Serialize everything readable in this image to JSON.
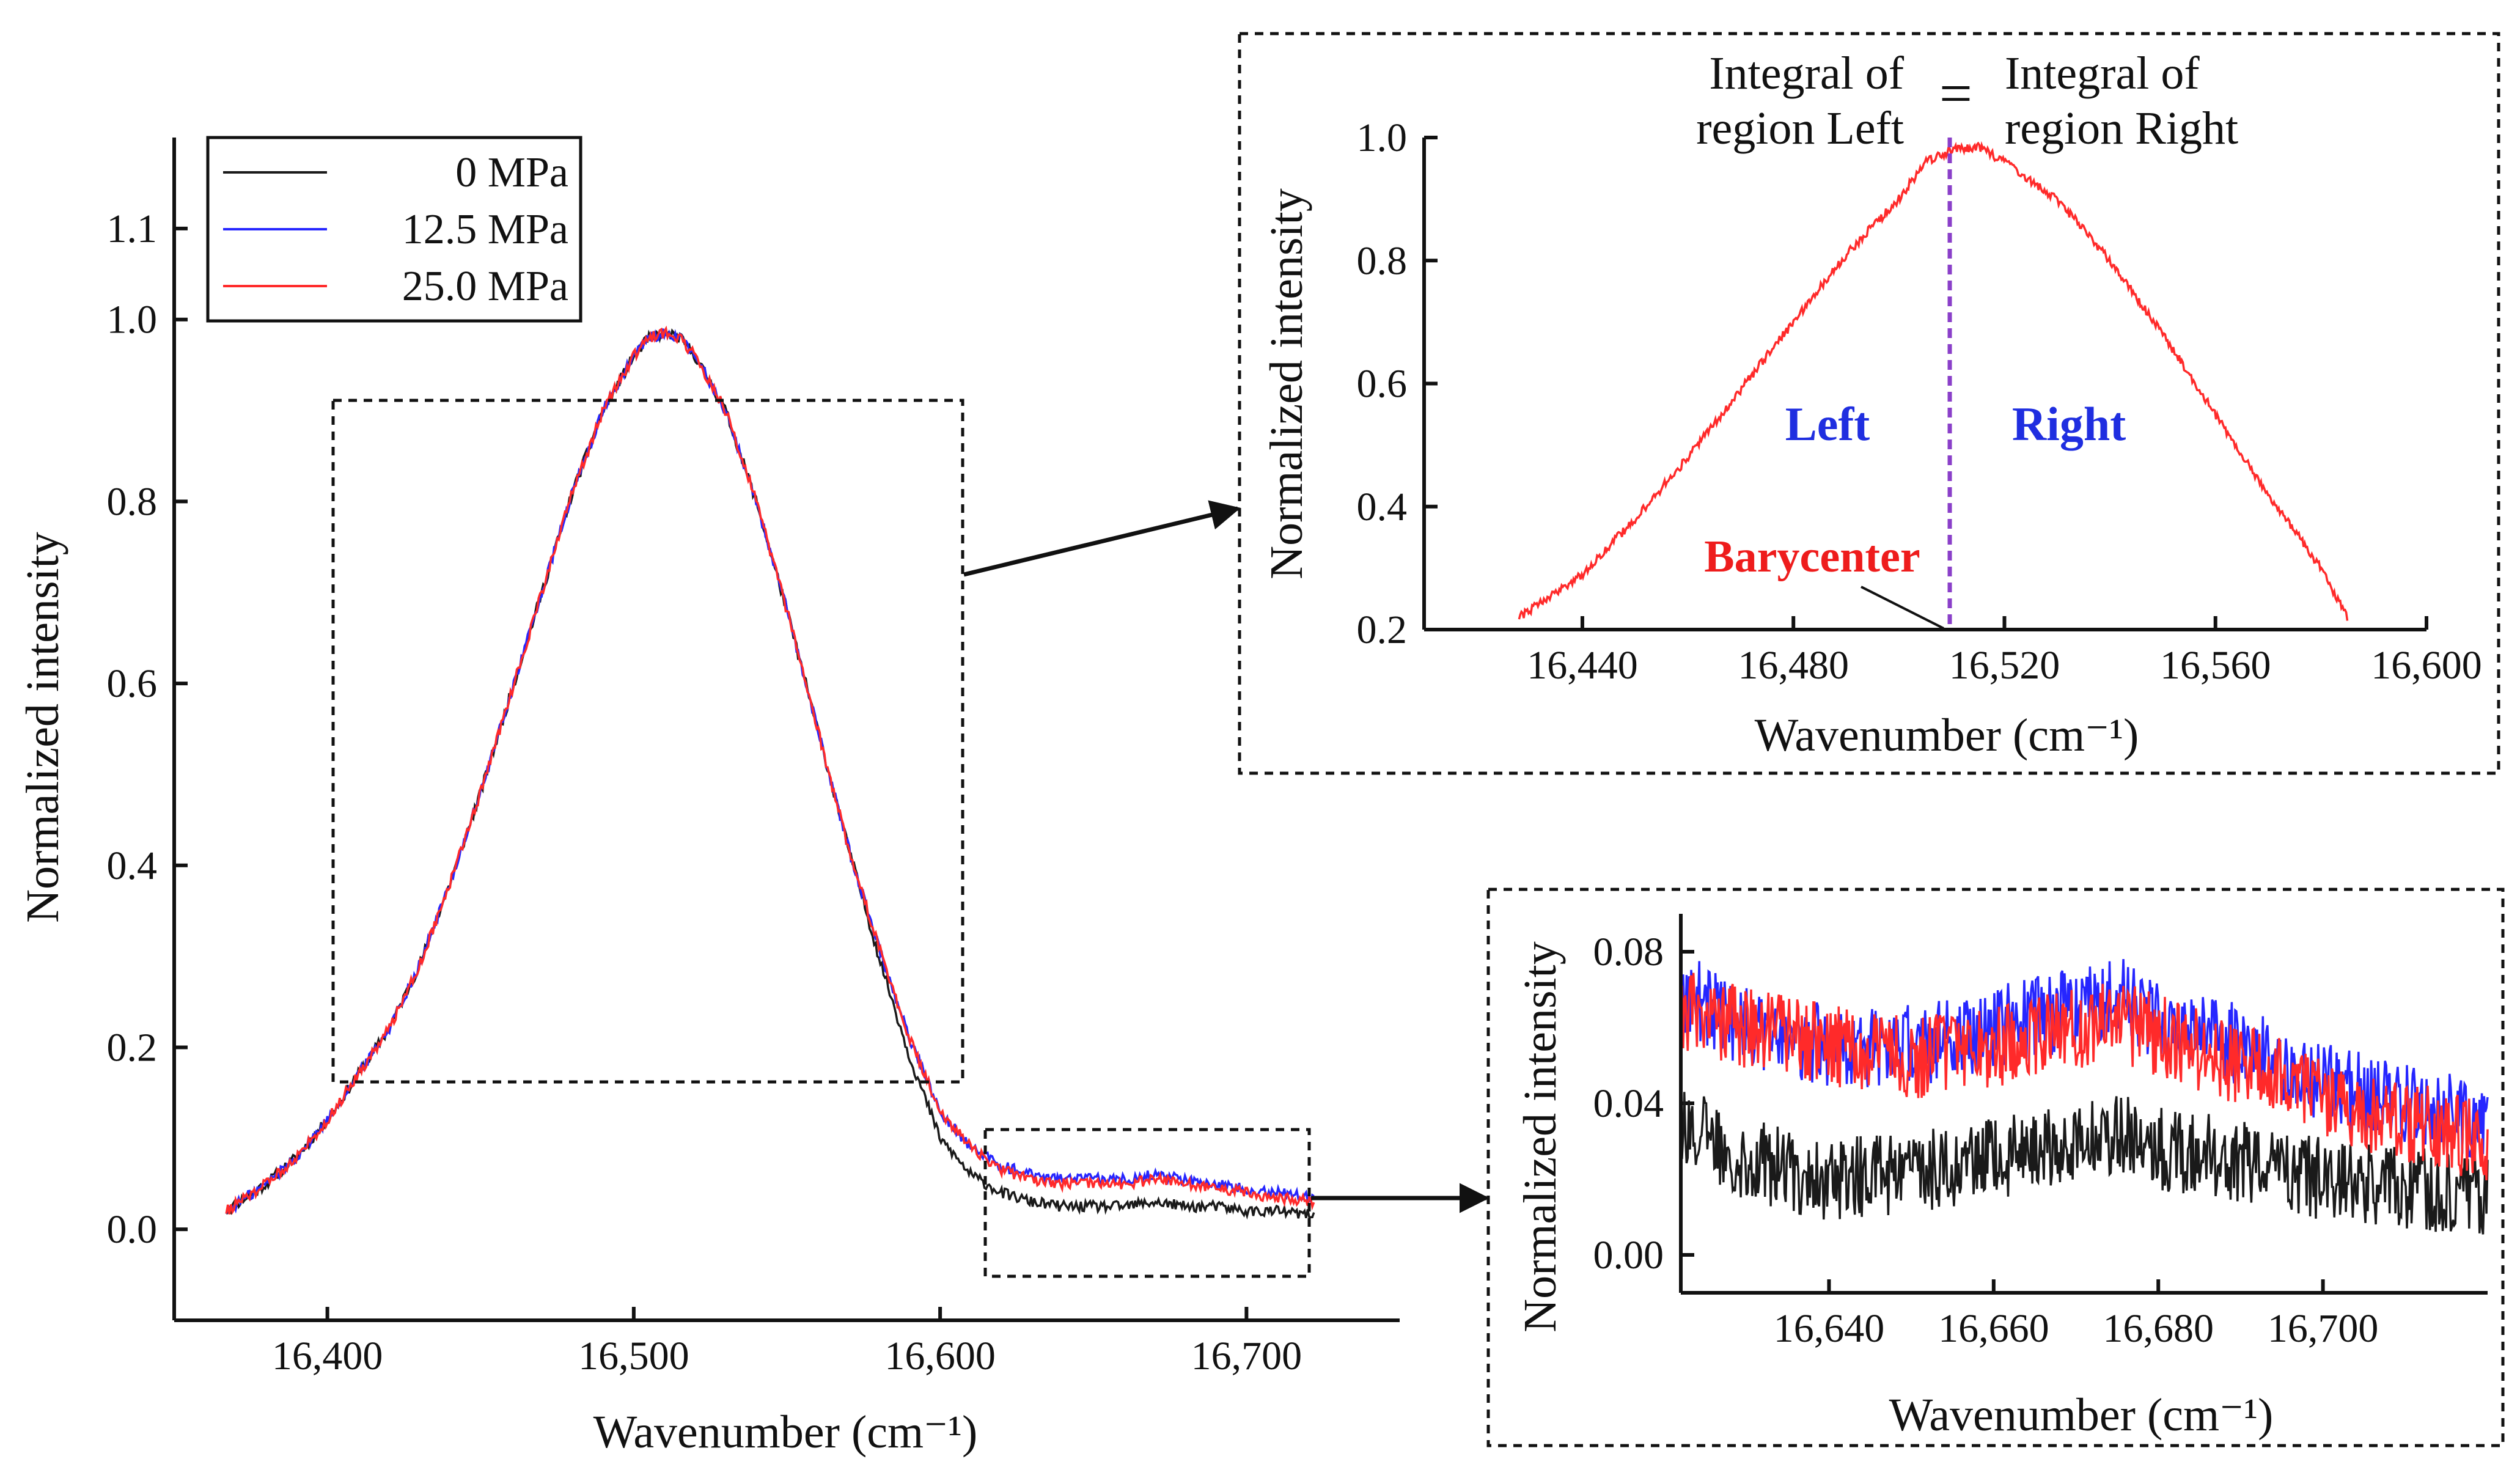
{
  "colors": {
    "0 MPa": "#1a1a1a",
    "12.5 MPa": "#2626ff",
    "25.0 MPa": "#ff2a2a",
    "barycenter_line": "#8a3fc9",
    "region_label": "#1f2ee0",
    "barycenter_label": "#ee1c1c"
  },
  "chart_data": [
    {
      "id": "main",
      "type": "line",
      "xlabel": "Wavenumber (cm⁻¹)",
      "ylabel": "Normalized intensity",
      "xlim": [
        16350,
        16750
      ],
      "ylim": [
        -0.1,
        1.2
      ],
      "xticks": [
        16400,
        16500,
        16600,
        16700
      ],
      "xtick_labels": [
        "16,400",
        "16,500",
        "16,600",
        "16,700"
      ],
      "yticks": [
        0.0,
        0.2,
        0.4,
        0.6,
        0.8,
        1.0,
        1.1
      ],
      "ytick_labels": [
        "0.0",
        "0.2",
        "0.4",
        "0.6",
        "0.8",
        "1.0",
        "1.1"
      ],
      "legend_position": "top-left",
      "x": [
        16367,
        16380,
        16390,
        16400,
        16410,
        16420,
        16430,
        16440,
        16450,
        16460,
        16470,
        16480,
        16490,
        16500,
        16505,
        16510,
        16515,
        16520,
        16530,
        16540,
        16550,
        16560,
        16570,
        16580,
        16590,
        16600,
        16610,
        16620,
        16630,
        16640,
        16650,
        16660,
        16670,
        16680,
        16690,
        16700,
        16710,
        16722
      ],
      "series": [
        {
          "name": "0 MPa",
          "values": [
            0.02,
            0.05,
            0.08,
            0.12,
            0.17,
            0.22,
            0.29,
            0.38,
            0.48,
            0.59,
            0.7,
            0.81,
            0.9,
            0.96,
            0.98,
            0.985,
            0.98,
            0.96,
            0.9,
            0.8,
            0.68,
            0.55,
            0.42,
            0.3,
            0.19,
            0.1,
            0.06,
            0.04,
            0.03,
            0.025,
            0.025,
            0.025,
            0.03,
            0.025,
            0.025,
            0.02,
            0.02,
            0.015
          ]
        },
        {
          "name": "12.5 MPa",
          "values": [
            0.02,
            0.05,
            0.08,
            0.12,
            0.17,
            0.22,
            0.29,
            0.38,
            0.48,
            0.59,
            0.7,
            0.81,
            0.9,
            0.96,
            0.98,
            0.985,
            0.98,
            0.96,
            0.9,
            0.8,
            0.68,
            0.55,
            0.42,
            0.31,
            0.21,
            0.13,
            0.09,
            0.07,
            0.06,
            0.055,
            0.055,
            0.055,
            0.06,
            0.055,
            0.05,
            0.045,
            0.04,
            0.035
          ]
        },
        {
          "name": "25.0 MPa",
          "values": [
            0.02,
            0.05,
            0.08,
            0.12,
            0.17,
            0.22,
            0.29,
            0.38,
            0.48,
            0.59,
            0.7,
            0.81,
            0.9,
            0.96,
            0.98,
            0.985,
            0.98,
            0.96,
            0.9,
            0.8,
            0.68,
            0.55,
            0.42,
            0.31,
            0.21,
            0.13,
            0.09,
            0.065,
            0.055,
            0.05,
            0.05,
            0.05,
            0.055,
            0.05,
            0.045,
            0.04,
            0.035,
            0.03
          ]
        }
      ]
    },
    {
      "id": "inset_peak",
      "type": "line",
      "xlabel": "Wavenumber (cm⁻¹)",
      "ylabel": "Normalized intensity",
      "xlim": [
        16410,
        16600
      ],
      "ylim": [
        0.2,
        1.0
      ],
      "xticks": [
        16440,
        16480,
        16520,
        16560,
        16600
      ],
      "xtick_labels": [
        "16,440",
        "16,480",
        "16,520",
        "16,560",
        "16,600"
      ],
      "yticks": [
        0.2,
        0.4,
        0.6,
        0.8,
        1.0
      ],
      "ytick_labels": [
        "0.2",
        "0.4",
        "0.6",
        "0.8",
        "1.0"
      ],
      "barycenter_x": 16510,
      "x": [
        16428,
        16440,
        16450,
        16460,
        16470,
        16480,
        16490,
        16500,
        16505,
        16510,
        16515,
        16520,
        16530,
        16540,
        16550,
        16560,
        16570,
        16580,
        16585
      ],
      "series": [
        {
          "name": "25.0 MPa",
          "values": [
            0.22,
            0.29,
            0.38,
            0.48,
            0.59,
            0.7,
            0.81,
            0.9,
            0.96,
            0.98,
            0.985,
            0.96,
            0.9,
            0.8,
            0.68,
            0.55,
            0.42,
            0.3,
            0.22
          ]
        }
      ],
      "annotations": {
        "integral_left": [
          "Integral of",
          "region Left"
        ],
        "equals": "=",
        "integral_right": [
          "Integral of",
          "region Right"
        ],
        "left": "Left",
        "right": "Right",
        "barycenter": "Barycenter"
      }
    },
    {
      "id": "inset_tail",
      "type": "line",
      "xlabel": "Wavenumber (cm⁻¹)",
      "ylabel": "Normalized intensity",
      "xlim": [
        16622,
        16720
      ],
      "ylim": [
        -0.01,
        0.09
      ],
      "xticks": [
        16640,
        16660,
        16680,
        16700
      ],
      "xtick_labels": [
        "16,640",
        "16,660",
        "16,680",
        "16,700"
      ],
      "yticks": [
        0.0,
        0.04,
        0.08
      ],
      "ytick_labels": [
        "0.00",
        "0.04",
        "0.08"
      ],
      "x": [
        16622,
        16630,
        16640,
        16650,
        16660,
        16670,
        16675,
        16680,
        16690,
        16700,
        16710,
        16720
      ],
      "series": [
        {
          "name": "0 MPa",
          "values": [
            0.035,
            0.025,
            0.02,
            0.022,
            0.025,
            0.03,
            0.032,
            0.028,
            0.025,
            0.02,
            0.018,
            0.015
          ]
        },
        {
          "name": "12.5 MPa",
          "values": [
            0.07,
            0.06,
            0.055,
            0.055,
            0.06,
            0.065,
            0.068,
            0.062,
            0.055,
            0.045,
            0.04,
            0.035
          ]
        },
        {
          "name": "25.0 MPa",
          "values": [
            0.065,
            0.06,
            0.055,
            0.052,
            0.055,
            0.06,
            0.062,
            0.058,
            0.05,
            0.042,
            0.035,
            0.03
          ]
        }
      ]
    }
  ]
}
